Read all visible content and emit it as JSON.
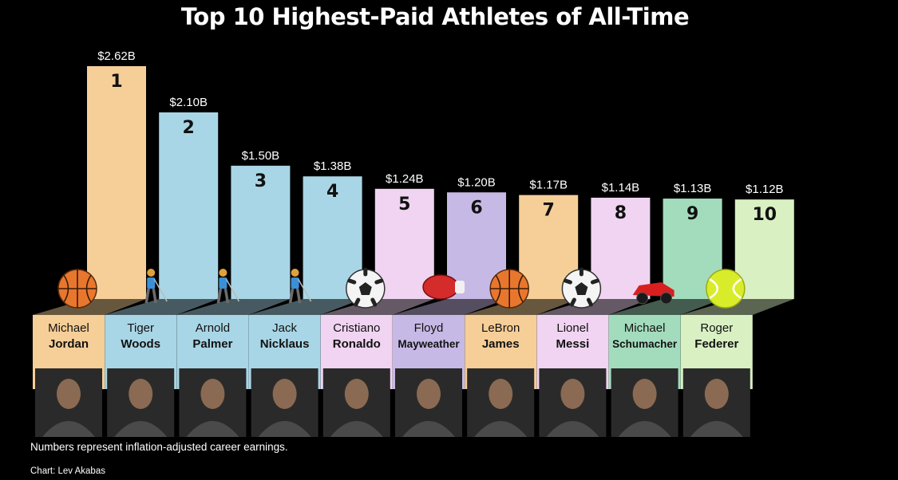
{
  "title": "Top 10 Highest-Paid Athletes of All-Time",
  "footnote": "Numbers represent inflation-adjusted career earnings.",
  "credit": "Chart: Lev Akabas",
  "chart_data": {
    "type": "bar",
    "unit": "billion USD",
    "categories": [
      "Michael Jordan",
      "Tiger Woods",
      "Arnold Palmer",
      "Jack Nicklaus",
      "Cristiano Ronaldo",
      "Floyd Mayweather",
      "LeBron James",
      "Lionel Messi",
      "Michael Schumacher",
      "Roger Federer"
    ],
    "values": [
      2.62,
      2.1,
      1.5,
      1.38,
      1.24,
      1.2,
      1.17,
      1.14,
      1.13,
      1.12
    ],
    "value_labels": [
      "$2.62B",
      "$2.10B",
      "$1.50B",
      "$1.38B",
      "$1.24B",
      "$1.20B",
      "$1.17B",
      "$1.14B",
      "$1.13B",
      "$1.12B"
    ],
    "ranks": [
      "1",
      "2",
      "3",
      "4",
      "5",
      "6",
      "7",
      "8",
      "9",
      "10"
    ],
    "athletes": [
      {
        "first": "Michael",
        "last": "Jordan",
        "sport": "basketball",
        "icon": "basketball-icon",
        "color": "#f6ce97"
      },
      {
        "first": "Tiger",
        "last": "Woods",
        "sport": "golf",
        "icon": "golfer-icon",
        "color": "#a9d6e6"
      },
      {
        "first": "Arnold",
        "last": "Palmer",
        "sport": "golf",
        "icon": "golfer-icon",
        "color": "#a9d6e6"
      },
      {
        "first": "Jack",
        "last": "Nicklaus",
        "sport": "golf",
        "icon": "golfer-icon",
        "color": "#a9d6e6"
      },
      {
        "first": "Cristiano",
        "last": "Ronaldo",
        "sport": "soccer",
        "icon": "soccer-ball-icon",
        "color": "#f0d4f1"
      },
      {
        "first": "Floyd",
        "last": "Mayweather",
        "sport": "boxing",
        "icon": "boxing-glove-icon",
        "color": "#c7b9e5"
      },
      {
        "first": "LeBron",
        "last": "James",
        "sport": "basketball",
        "icon": "basketball-icon",
        "color": "#f6ce97"
      },
      {
        "first": "Lionel",
        "last": "Messi",
        "sport": "soccer",
        "icon": "soccer-ball-icon",
        "color": "#f0d4f1"
      },
      {
        "first": "Michael",
        "last": "Schumacher",
        "sport": "racing",
        "icon": "race-car-icon",
        "color": "#a3dcbd"
      },
      {
        "first": "Roger",
        "last": "Federer",
        "sport": "tennis",
        "icon": "tennis-ball-icon",
        "color": "#d9f0c3"
      }
    ]
  }
}
